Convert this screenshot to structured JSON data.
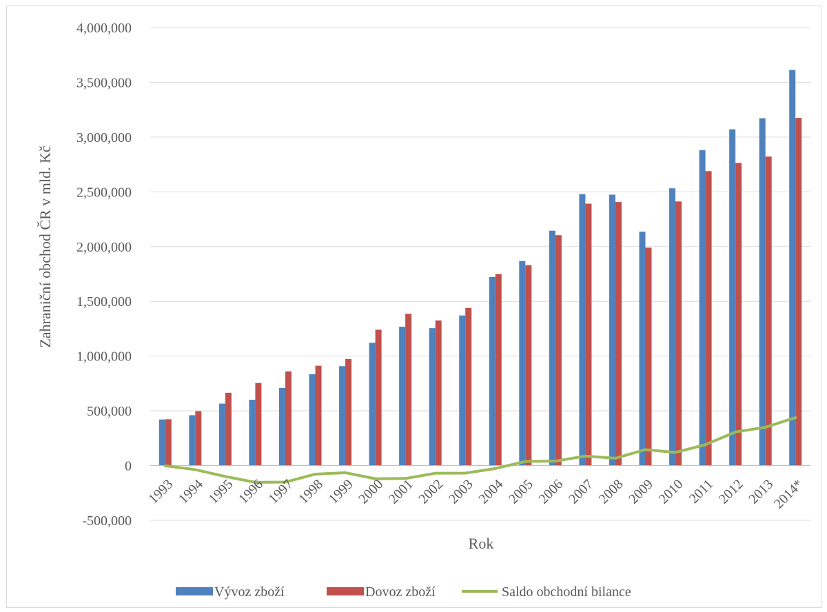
{
  "chart_data": {
    "type": "bar",
    "title": "",
    "xlabel": "Rok",
    "ylabel": "Zahraniční obchod ČR v mld. Kč",
    "ylim": [
      -500000,
      4000000
    ],
    "yticks": [
      -500000,
      0,
      500000,
      1000000,
      1500000,
      2000000,
      2500000,
      3000000,
      3500000,
      4000000
    ],
    "ytick_labels": [
      "-500,000",
      "0",
      "500,000",
      "1,000,000",
      "1,500,000",
      "2,000,000",
      "2,500,000",
      "3,000,000",
      "3,500,000",
      "4,000,000"
    ],
    "grid": true,
    "legend_position": "bottom",
    "categories": [
      "1993",
      "1994",
      "1995",
      "1996",
      "1997",
      "1998",
      "1999",
      "2000",
      "2001",
      "2002",
      "2003",
      "2004",
      "2005",
      "2006",
      "2007",
      "2008",
      "2009",
      "2010",
      "2011",
      "2012",
      "2013",
      "2014*"
    ],
    "series": [
      {
        "name": "Vývoz zboží",
        "type": "bar",
        "color": "#4f81bd",
        "values": [
          421000,
          460000,
          566000,
          601000,
          709000,
          834000,
          908000,
          1121000,
          1268000,
          1255000,
          1371000,
          1722000,
          1868000,
          2145000,
          2479000,
          2474000,
          2136000,
          2532000,
          2880000,
          3071000,
          3172000,
          3613000
        ]
      },
      {
        "name": "Dovoz zboží",
        "type": "bar",
        "color": "#c0504d",
        "values": [
          423000,
          497000,
          665000,
          754000,
          860000,
          912000,
          973000,
          1241000,
          1386000,
          1325000,
          1440000,
          1749000,
          1830000,
          2104000,
          2392000,
          2407000,
          1990000,
          2412000,
          2689000,
          2764000,
          2822000,
          3175000
        ]
      },
      {
        "name": "Saldo obchodní bilance",
        "type": "line",
        "color": "#9bbb59",
        "values": [
          -2000,
          -37000,
          -99000,
          -153000,
          -151000,
          -78000,
          -65000,
          -120000,
          -118000,
          -70000,
          -69000,
          -27000,
          38000,
          41000,
          87000,
          67000,
          146000,
          120000,
          191000,
          307000,
          350000,
          438000
        ]
      }
    ]
  }
}
